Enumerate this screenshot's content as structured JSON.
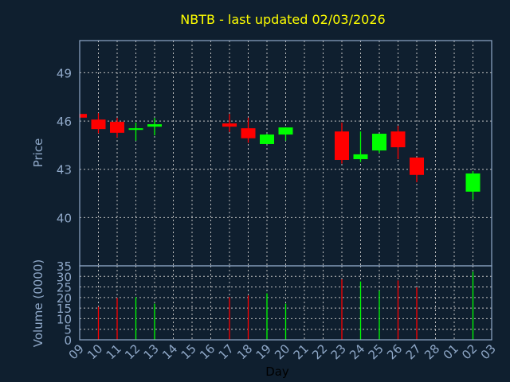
{
  "chart_data": {
    "type": "candlestick",
    "title": "NBTB - last updated 02/03/2026",
    "xlabel": "Day",
    "ylabel_price": "Price",
    "ylabel_volume": "Volume (0000)",
    "x_ticks": [
      "09",
      "10",
      "11",
      "12",
      "13",
      "14",
      "15",
      "16",
      "17",
      "18",
      "19",
      "20",
      "21",
      "22",
      "23",
      "24",
      "25",
      "26",
      "27",
      "28",
      "01",
      "02",
      "03"
    ],
    "price_ticks": [
      40,
      43,
      46,
      49
    ],
    "price_ylim": [
      37,
      51
    ],
    "volume_ticks": [
      0,
      5,
      10,
      15,
      20,
      25,
      30,
      35
    ],
    "volume_ylim": [
      0,
      35
    ],
    "grid": true,
    "colors": {
      "up": "#00ff00",
      "down": "#ff0000",
      "background": "#0f1f2f",
      "axis": "#8fa8c8",
      "grid": "#c0c0c0",
      "title": "#ffff00"
    },
    "candles": [
      {
        "day": "09",
        "open": 46.44,
        "high": 46.44,
        "low": 46.21,
        "close": 46.21,
        "volume": null
      },
      {
        "day": "10",
        "open": 46.09,
        "high": 46.49,
        "low": 45.24,
        "close": 45.5,
        "volume": 15.6
      },
      {
        "day": "11",
        "open": 45.95,
        "high": 46.19,
        "low": 44.98,
        "close": 45.27,
        "volume": 19.8
      },
      {
        "day": "12",
        "open": 45.45,
        "high": 45.9,
        "low": 44.78,
        "close": 45.55,
        "volume": 20.2
      },
      {
        "day": "13",
        "open": 45.65,
        "high": 46.19,
        "low": 45.11,
        "close": 45.8,
        "volume": 17.1
      },
      {
        "day": "17",
        "open": 45.85,
        "high": 46.44,
        "low": 45.32,
        "close": 45.65,
        "volume": 20.2
      },
      {
        "day": "18",
        "open": 45.55,
        "high": 46.21,
        "low": 44.65,
        "close": 44.93,
        "volume": 21.0
      },
      {
        "day": "19",
        "open": 44.57,
        "high": 45.21,
        "low": 44.57,
        "close": 45.16,
        "volume": 22.0
      },
      {
        "day": "20",
        "open": 45.16,
        "high": 45.6,
        "low": 44.78,
        "close": 45.6,
        "volume": 17.1
      },
      {
        "day": "23",
        "open": 45.35,
        "high": 45.9,
        "low": 43.35,
        "close": 43.58,
        "volume": 28.6
      },
      {
        "day": "24",
        "open": 43.63,
        "high": 45.35,
        "low": 43.45,
        "close": 43.93,
        "volume": 27.6
      },
      {
        "day": "25",
        "open": 44.17,
        "high": 45.21,
        "low": 44.02,
        "close": 45.21,
        "volume": 23.2
      },
      {
        "day": "26",
        "open": 45.35,
        "high": 45.7,
        "low": 43.63,
        "close": 44.37,
        "volume": 28.1
      },
      {
        "day": "27",
        "open": 43.73,
        "high": 43.73,
        "low": 42.2,
        "close": 42.65,
        "volume": 24.8
      },
      {
        "day": "02",
        "open": 41.61,
        "high": 42.89,
        "low": 41.12,
        "close": 42.74,
        "volume": 32.2
      }
    ]
  }
}
